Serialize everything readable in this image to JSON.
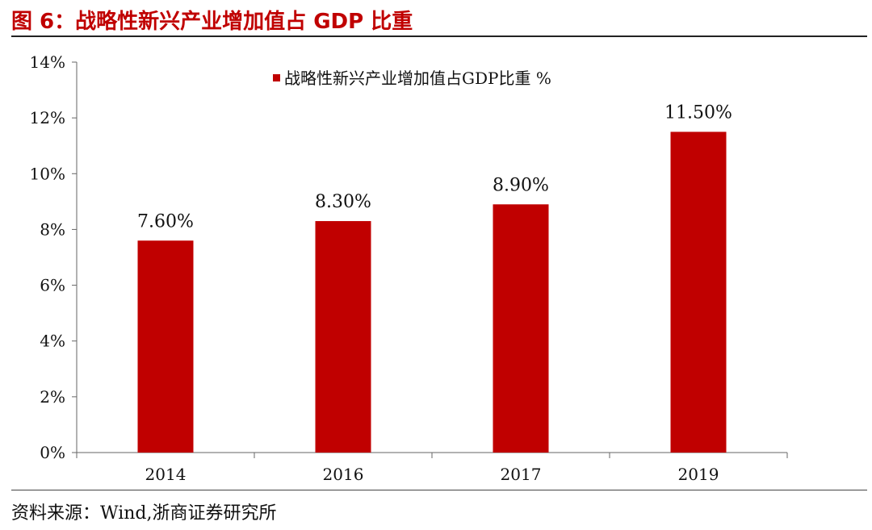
{
  "figure": {
    "title": "图 6：战略性新兴产业增加值占 GDP 比重",
    "source": "资料来源：Wind,浙商证券研究所"
  },
  "chart_data": {
    "type": "bar",
    "categories": [
      "2014",
      "2016",
      "2017",
      "2019"
    ],
    "series": [
      {
        "name": "战略性新兴产业增加值占GDP比重 %",
        "values": [
          7.6,
          8.3,
          8.9,
          11.5
        ],
        "labels": [
          "7.60%",
          "8.30%",
          "8.90%",
          "11.50%"
        ],
        "color": "#c00000"
      }
    ],
    "ylim": [
      0,
      14
    ],
    "yticks": [
      0,
      2,
      4,
      6,
      8,
      10,
      12,
      14
    ],
    "ytick_labels": [
      "0%",
      "2%",
      "4%",
      "6%",
      "8%",
      "10%",
      "12%",
      "14%"
    ],
    "grid": false,
    "legend": "top-center"
  }
}
